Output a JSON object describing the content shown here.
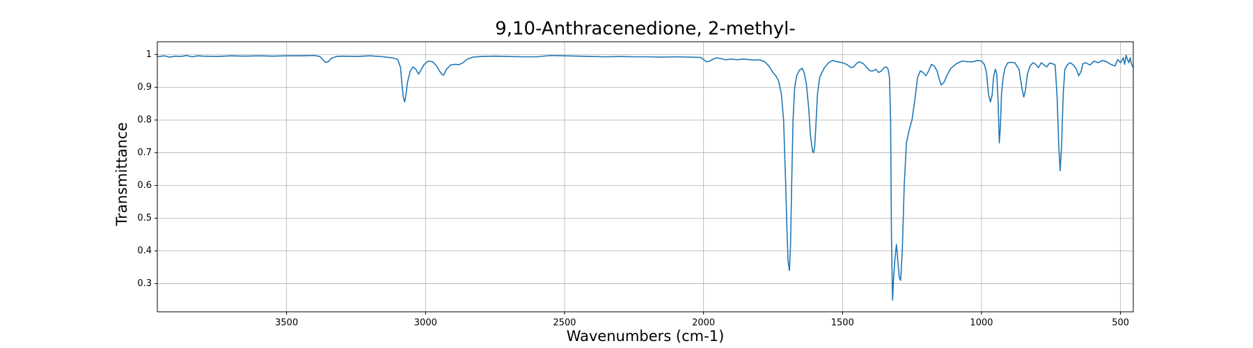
{
  "chart_data": {
    "type": "line",
    "title": "9,10-Anthracenedione, 2-methyl-",
    "xlabel": "Wavenumbers (cm-1)",
    "ylabel": "Transmittance",
    "color": "#1f77b4",
    "grid": true,
    "xlim": [
      3965,
      454
    ],
    "ylim": [
      0.214,
      1.039
    ],
    "xticks": [
      3500,
      3000,
      2500,
      2000,
      1500,
      1000,
      500
    ],
    "yticks": [
      0.3,
      0.4,
      0.5,
      0.6,
      0.7,
      0.8,
      0.9,
      1.0
    ],
    "x": [
      3965,
      3940,
      3920,
      3900,
      3880,
      3860,
      3840,
      3820,
      3800,
      3750,
      3700,
      3650,
      3600,
      3550,
      3500,
      3450,
      3400,
      3380,
      3370,
      3360,
      3350,
      3340,
      3320,
      3300,
      3250,
      3200,
      3150,
      3120,
      3100,
      3090,
      3085,
      3080,
      3075,
      3070,
      3065,
      3055,
      3045,
      3035,
      3025,
      3015,
      3005,
      2990,
      2975,
      2960,
      2950,
      2940,
      2935,
      2925,
      2910,
      2895,
      2880,
      2865,
      2850,
      2830,
      2800,
      2750,
      2700,
      2650,
      2600,
      2550,
      2500,
      2450,
      2400,
      2350,
      2300,
      2250,
      2200,
      2150,
      2100,
      2050,
      2010,
      2000,
      1990,
      1980,
      1970,
      1955,
      1940,
      1920,
      1900,
      1880,
      1860,
      1840,
      1820,
      1800,
      1780,
      1765,
      1750,
      1740,
      1730,
      1720,
      1712,
      1705,
      1700,
      1696,
      1691,
      1687,
      1683,
      1678,
      1672,
      1665,
      1655,
      1645,
      1638,
      1630,
      1622,
      1615,
      1608,
      1604,
      1600,
      1596,
      1590,
      1582,
      1574,
      1565,
      1550,
      1535,
      1520,
      1500,
      1485,
      1470,
      1460,
      1450,
      1440,
      1425,
      1410,
      1400,
      1390,
      1380,
      1370,
      1360,
      1350,
      1342,
      1336,
      1331,
      1327,
      1324,
      1320,
      1316,
      1311,
      1306,
      1301,
      1296,
      1291,
      1285,
      1278,
      1270,
      1260,
      1250,
      1240,
      1230,
      1220,
      1210,
      1200,
      1190,
      1180,
      1170,
      1160,
      1152,
      1145,
      1135,
      1125,
      1110,
      1090,
      1070,
      1050,
      1030,
      1015,
      1000,
      990,
      982,
      975,
      968,
      962,
      956,
      950,
      945,
      940,
      936,
      932,
      928,
      922,
      915,
      905,
      895,
      880,
      865,
      855,
      848,
      842,
      835,
      825,
      815,
      805,
      795,
      785,
      775,
      765,
      755,
      745,
      735,
      728,
      722,
      717,
      712,
      706,
      700,
      690,
      680,
      670,
      660,
      650,
      642,
      635,
      625,
      610,
      595,
      580,
      565,
      550,
      535,
      520,
      510,
      500,
      490,
      485,
      480,
      475,
      470,
      465,
      460,
      454
    ],
    "values": [
      0.993,
      0.996,
      0.992,
      0.995,
      0.994,
      0.997,
      0.993,
      0.996,
      0.995,
      0.994,
      0.996,
      0.995,
      0.996,
      0.995,
      0.996,
      0.996,
      0.997,
      0.994,
      0.985,
      0.976,
      0.978,
      0.988,
      0.994,
      0.995,
      0.994,
      0.996,
      0.993,
      0.99,
      0.985,
      0.96,
      0.91,
      0.87,
      0.855,
      0.88,
      0.915,
      0.95,
      0.962,
      0.955,
      0.94,
      0.955,
      0.97,
      0.98,
      0.978,
      0.965,
      0.95,
      0.938,
      0.937,
      0.955,
      0.968,
      0.97,
      0.969,
      0.975,
      0.986,
      0.992,
      0.994,
      0.995,
      0.994,
      0.993,
      0.993,
      0.997,
      0.996,
      0.995,
      0.994,
      0.993,
      0.994,
      0.993,
      0.993,
      0.992,
      0.993,
      0.992,
      0.991,
      0.985,
      0.978,
      0.979,
      0.984,
      0.99,
      0.988,
      0.984,
      0.986,
      0.984,
      0.986,
      0.985,
      0.983,
      0.984,
      0.978,
      0.965,
      0.945,
      0.935,
      0.92,
      0.88,
      0.8,
      0.62,
      0.47,
      0.37,
      0.34,
      0.42,
      0.6,
      0.8,
      0.9,
      0.935,
      0.952,
      0.958,
      0.945,
      0.91,
      0.84,
      0.75,
      0.705,
      0.7,
      0.72,
      0.78,
      0.88,
      0.93,
      0.945,
      0.96,
      0.975,
      0.982,
      0.978,
      0.975,
      0.97,
      0.96,
      0.962,
      0.972,
      0.978,
      0.972,
      0.958,
      0.95,
      0.95,
      0.955,
      0.945,
      0.95,
      0.96,
      0.962,
      0.955,
      0.93,
      0.8,
      0.45,
      0.25,
      0.32,
      0.38,
      0.42,
      0.37,
      0.32,
      0.31,
      0.4,
      0.6,
      0.73,
      0.77,
      0.8,
      0.86,
      0.93,
      0.95,
      0.945,
      0.935,
      0.95,
      0.97,
      0.965,
      0.95,
      0.925,
      0.907,
      0.915,
      0.935,
      0.958,
      0.972,
      0.98,
      0.978,
      0.978,
      0.982,
      0.98,
      0.97,
      0.945,
      0.88,
      0.855,
      0.875,
      0.935,
      0.955,
      0.94,
      0.85,
      0.73,
      0.78,
      0.88,
      0.93,
      0.96,
      0.975,
      0.976,
      0.975,
      0.955,
      0.9,
      0.87,
      0.89,
      0.94,
      0.965,
      0.975,
      0.97,
      0.96,
      0.975,
      0.968,
      0.962,
      0.974,
      0.972,
      0.968,
      0.87,
      0.72,
      0.645,
      0.72,
      0.88,
      0.955,
      0.97,
      0.975,
      0.968,
      0.958,
      0.935,
      0.948,
      0.972,
      0.975,
      0.968,
      0.98,
      0.975,
      0.982,
      0.978,
      0.97,
      0.965,
      0.985,
      0.975,
      0.99,
      0.97,
      0.998,
      0.985,
      0.975,
      0.99,
      0.97,
      0.96
    ]
  }
}
